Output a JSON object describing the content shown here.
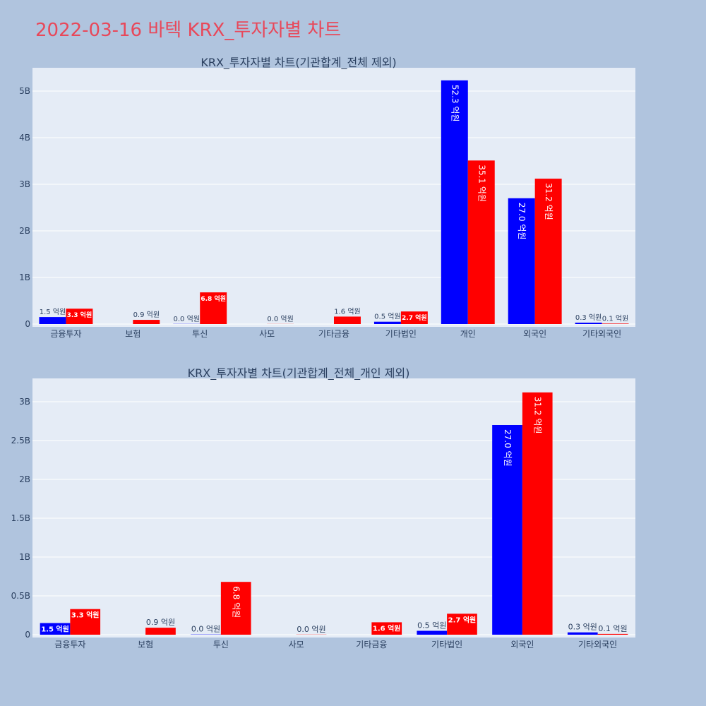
{
  "page_title": "2022-03-16 바텍 KRX_투자자별 차트",
  "colors": {
    "buy": "#0000ff",
    "sell": "#ff0000",
    "plot_bg": "#e5ecf6",
    "page_bg": "#b0c4de",
    "title": "#e8485a"
  },
  "chart_data": [
    {
      "type": "bar",
      "title": "KRX_투자자별 차트(기관합계_전체 제외)",
      "categories": [
        "금융투자",
        "보험",
        "투신",
        "사모",
        "기타금융",
        "기타법인",
        "개인",
        "외국인",
        "기타외국인"
      ],
      "series": [
        {
          "values": [
            0.15,
            0,
            0.003,
            0,
            0,
            0.05,
            5.23,
            2.7,
            0.03
          ],
          "labels": [
            "1.5 억원",
            "",
            "0.0 억원",
            "",
            "",
            "0.5 억원",
            "52.3 억원",
            "27.0 억원",
            "0.3 억원"
          ]
        },
        {
          "values": [
            0.33,
            0.09,
            0.68,
            0.002,
            0.16,
            0.27,
            3.51,
            3.12,
            0.01
          ],
          "labels": [
            "3.3 억원",
            "0.9 억원",
            "6.8 억원",
            "0.0 억원",
            "1.6 억원",
            "2.7 억원",
            "35.1 억원",
            "31.2 억원",
            "0.1 억원"
          ]
        }
      ],
      "yticks": [
        0,
        1,
        2,
        3,
        4,
        5
      ],
      "ytick_labels": [
        "0",
        "1B",
        "2B",
        "3B",
        "4B",
        "5B"
      ],
      "ylim": [
        0,
        5.5
      ],
      "grid": true
    },
    {
      "type": "bar",
      "title": "KRX_투자자별 차트(기관합계_전체_개인 제외)",
      "categories": [
        "금융투자",
        "보험",
        "투신",
        "사모",
        "기타금융",
        "기타법인",
        "외국인",
        "기타외국인"
      ],
      "series": [
        {
          "values": [
            0.15,
            0,
            0.003,
            0,
            0,
            0.05,
            2.7,
            0.03
          ],
          "labels": [
            "1.5 억원",
            "",
            "0.0 억원",
            "",
            "",
            "0.5 억원",
            "27.0 억원",
            "0.3 억원"
          ]
        },
        {
          "values": [
            0.33,
            0.09,
            0.68,
            0.002,
            0.16,
            0.27,
            3.12,
            0.01
          ],
          "labels": [
            "3.3 억원",
            "0.9 억원",
            "6.8 억원",
            "0.0 억원",
            "1.6 억원",
            "2.7 억원",
            "31.2 억원",
            "0.1 억원"
          ]
        }
      ],
      "yticks": [
        0,
        0.5,
        1,
        1.5,
        2,
        2.5,
        3
      ],
      "ytick_labels": [
        "0",
        "0.5B",
        "1B",
        "1.5B",
        "2B",
        "2.5B",
        "3B"
      ],
      "ylim": [
        0,
        3.3
      ],
      "grid": true
    }
  ]
}
